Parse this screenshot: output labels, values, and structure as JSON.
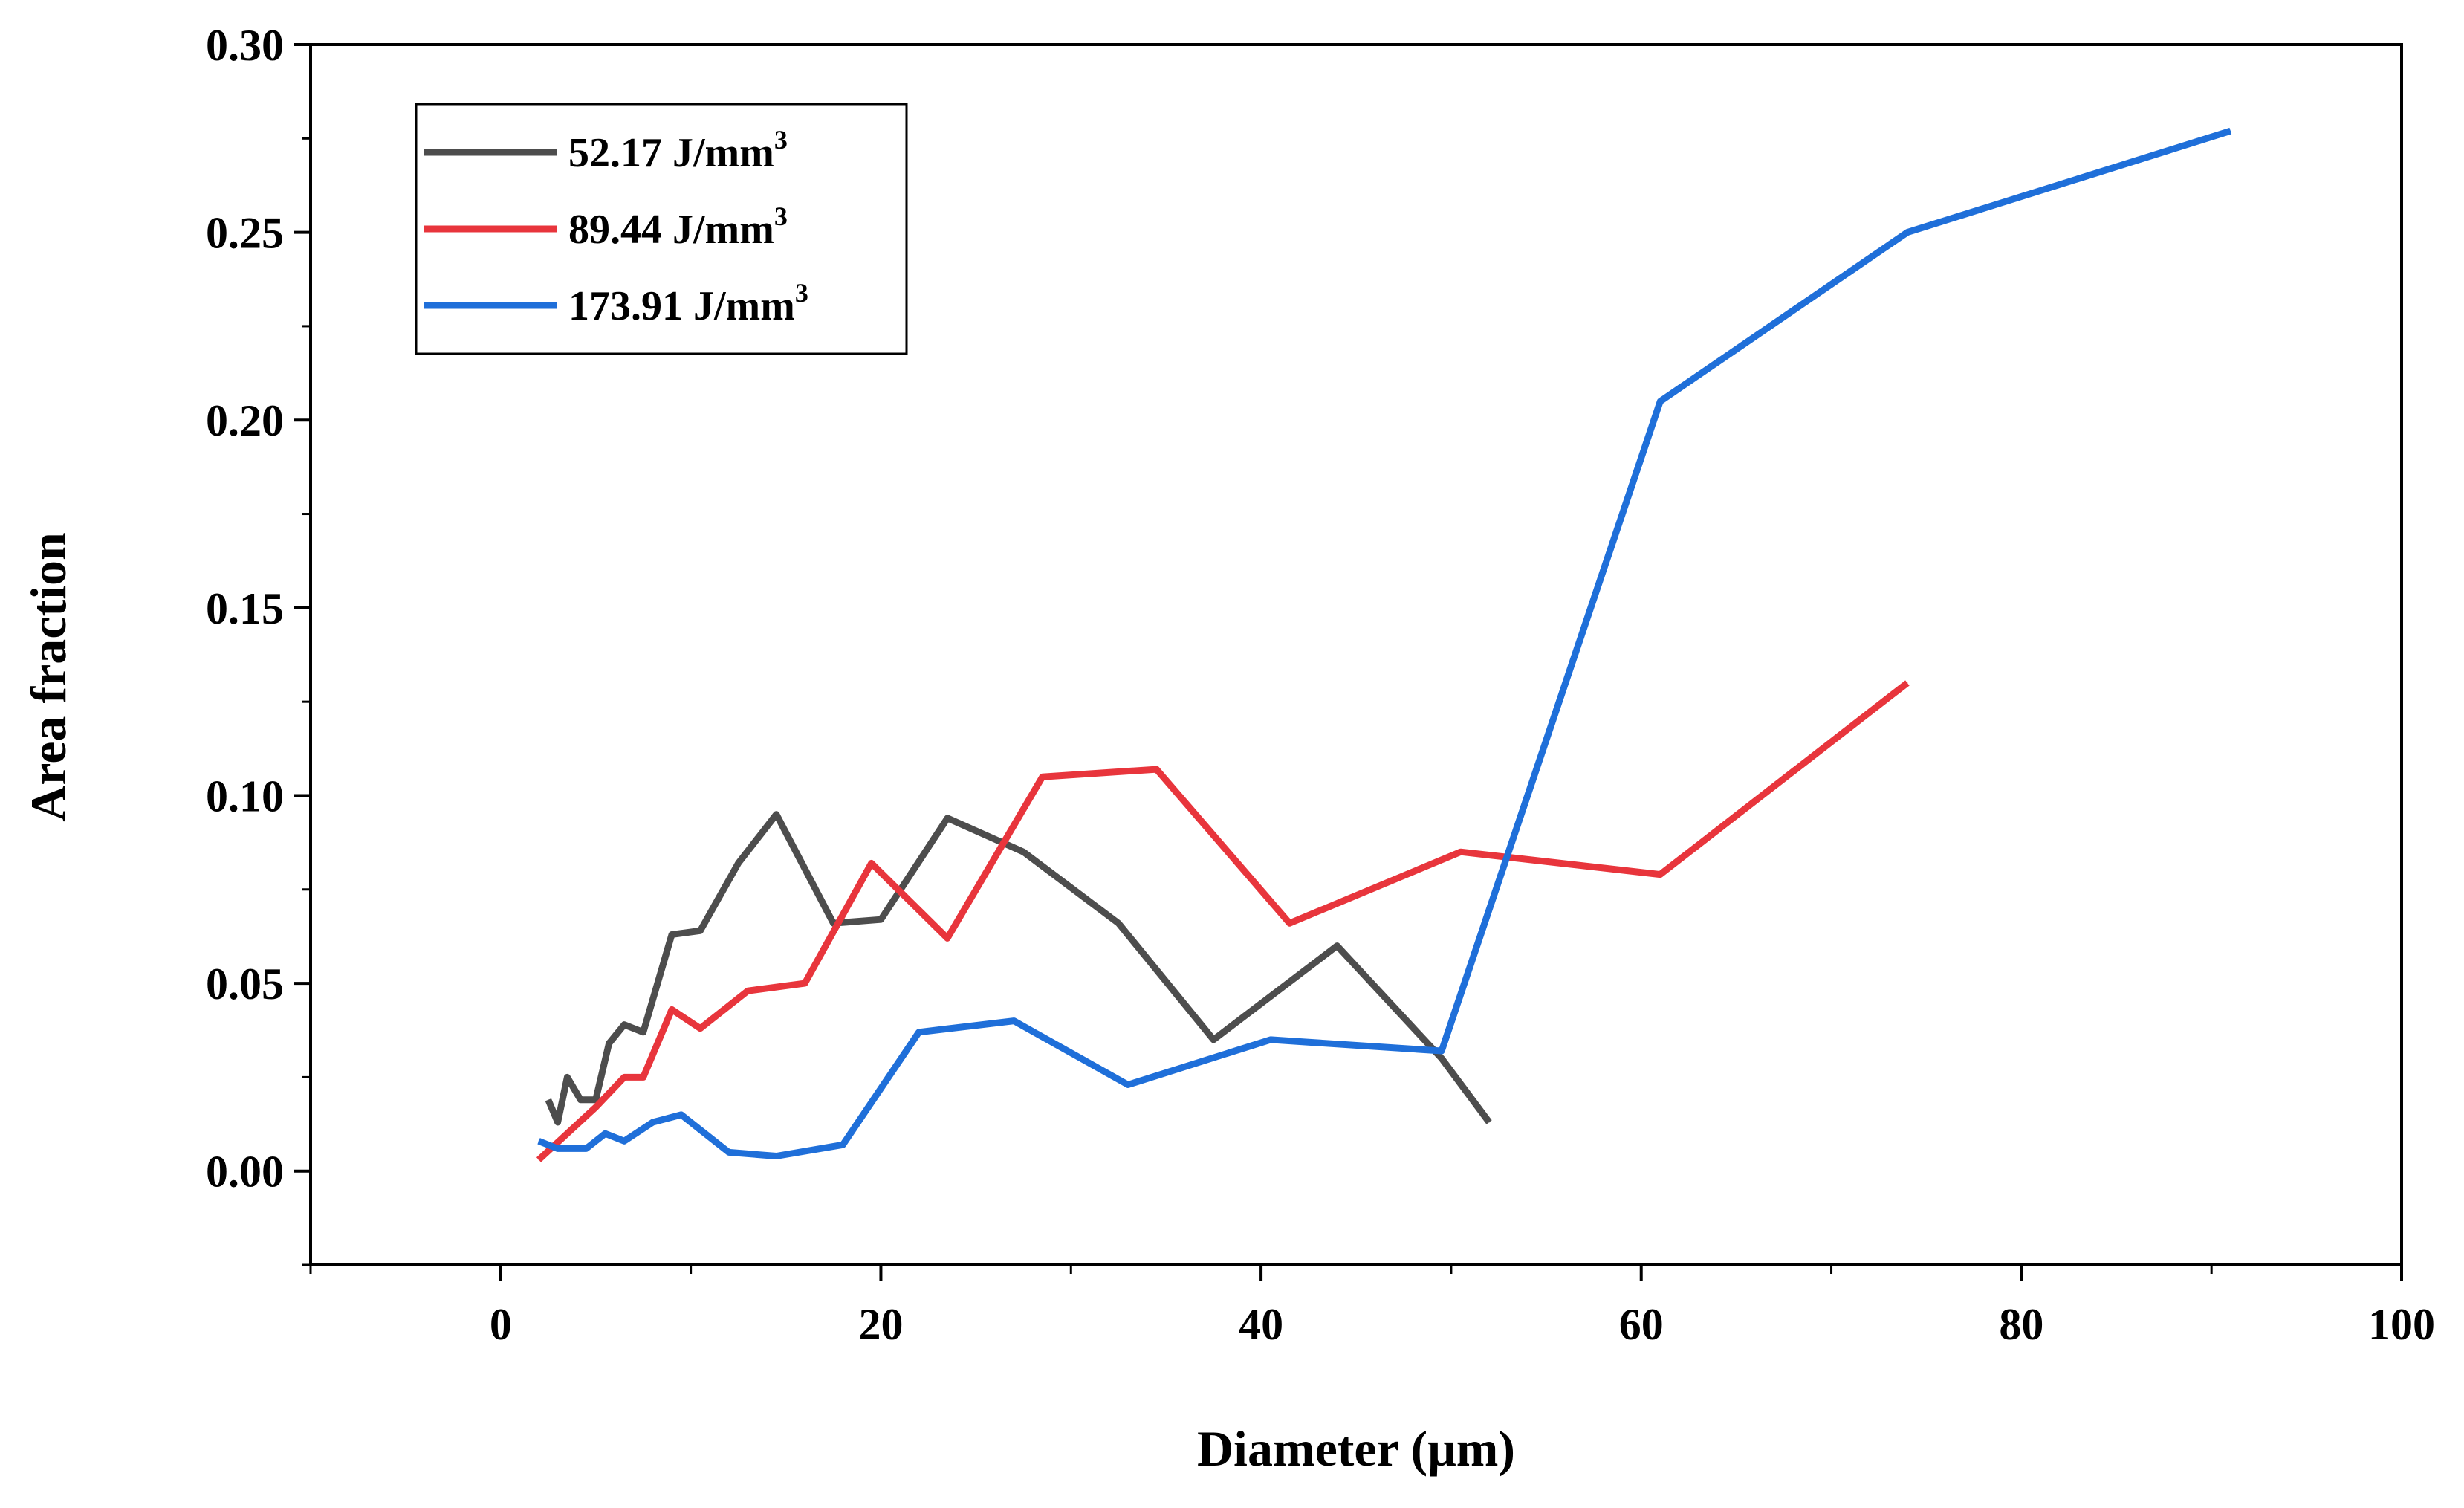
{
  "chart_data": {
    "type": "line",
    "title": "",
    "xlabel": "Diameter (μm)",
    "ylabel": "Area fraction",
    "xlim": [
      -10,
      100
    ],
    "ylim": [
      -0.025,
      0.3
    ],
    "x_ticks": [
      0,
      20,
      40,
      60,
      80,
      100
    ],
    "x_tick_labels": [
      "0",
      "20",
      "40",
      "60",
      "80",
      "100"
    ],
    "y_ticks": [
      0.0,
      0.05,
      0.1,
      0.15,
      0.2,
      0.25,
      0.3
    ],
    "y_tick_labels": [
      "0.00",
      "0.05",
      "0.10",
      "0.15",
      "0.20",
      "0.25",
      "0.30"
    ],
    "grid": false,
    "legend_position": "top-left",
    "series": [
      {
        "name": "52.17 J/mm3",
        "legend_main": "52.17 J/mm",
        "legend_sup": "3",
        "color": "#4d4d4d",
        "points": [
          [
            2.5,
            0.019
          ],
          [
            3.0,
            0.013
          ],
          [
            3.5,
            0.025
          ],
          [
            4.2,
            0.019
          ],
          [
            5.0,
            0.019
          ],
          [
            5.7,
            0.034
          ],
          [
            6.5,
            0.039
          ],
          [
            7.5,
            0.037
          ],
          [
            9.0,
            0.063
          ],
          [
            10.5,
            0.064
          ],
          [
            12.5,
            0.082
          ],
          [
            14.5,
            0.095
          ],
          [
            17.5,
            0.066
          ],
          [
            20.0,
            0.067
          ],
          [
            23.5,
            0.094
          ],
          [
            27.5,
            0.085
          ],
          [
            32.5,
            0.066
          ],
          [
            37.5,
            0.035
          ],
          [
            44.0,
            0.06
          ],
          [
            49.5,
            0.03
          ],
          [
            52.0,
            0.013
          ]
        ]
      },
      {
        "name": "89.44 J/mm3",
        "legend_main": "89.44 J/mm",
        "legend_sup": "3",
        "color": "#e8353c",
        "points": [
          [
            2.0,
            0.003
          ],
          [
            5.0,
            0.017
          ],
          [
            6.5,
            0.025
          ],
          [
            7.5,
            0.025
          ],
          [
            9.0,
            0.043
          ],
          [
            10.5,
            0.038
          ],
          [
            13.0,
            0.048
          ],
          [
            16.0,
            0.05
          ],
          [
            19.5,
            0.082
          ],
          [
            23.5,
            0.062
          ],
          [
            28.5,
            0.105
          ],
          [
            34.5,
            0.107
          ],
          [
            41.5,
            0.066
          ],
          [
            50.5,
            0.085
          ],
          [
            61.0,
            0.079
          ],
          [
            74.0,
            0.13
          ]
        ]
      },
      {
        "name": "173.91 J/mm3",
        "legend_main": "173.91 J/mm",
        "legend_sup": "3",
        "color": "#1f6fd9",
        "points": [
          [
            2.0,
            0.008
          ],
          [
            3.0,
            0.006
          ],
          [
            4.5,
            0.006
          ],
          [
            5.5,
            0.01
          ],
          [
            6.5,
            0.008
          ],
          [
            8.0,
            0.013
          ],
          [
            9.5,
            0.015
          ],
          [
            12.0,
            0.005
          ],
          [
            14.5,
            0.004
          ],
          [
            18.0,
            0.007
          ],
          [
            22.0,
            0.037
          ],
          [
            27.0,
            0.04
          ],
          [
            33.0,
            0.023
          ],
          [
            40.5,
            0.035
          ],
          [
            49.5,
            0.032
          ],
          [
            61.0,
            0.205
          ],
          [
            74.0,
            0.25
          ],
          [
            91.0,
            0.277
          ]
        ]
      }
    ]
  }
}
